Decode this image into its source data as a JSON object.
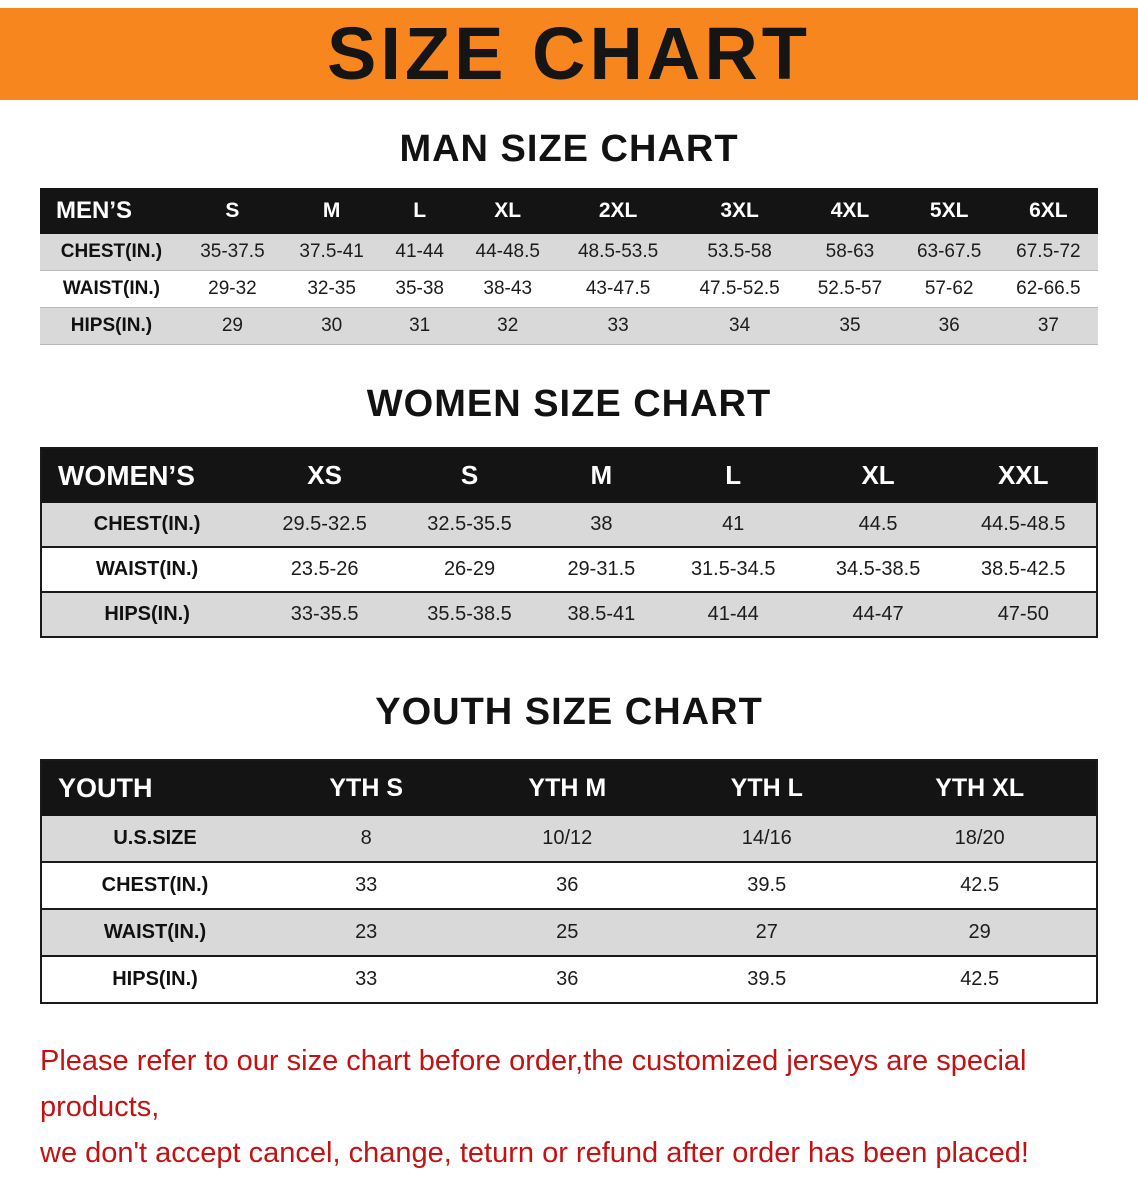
{
  "banner": {
    "title": "SIZE CHART"
  },
  "colors": {
    "banner_bg": "#f6861d",
    "header_bar": "#141414",
    "row_alt": "#d9d9d9",
    "disclaimer_red": "#c41212"
  },
  "sections": [
    {
      "heading": "MAN SIZE CHART",
      "table": {
        "header": [
          "MEN’S",
          "S",
          "M",
          "L",
          "XL",
          "2XL",
          "3XL",
          "4XL",
          "5XL",
          "6XL"
        ],
        "rows": [
          {
            "label": "CHEST(IN.)",
            "values": [
              "35-37.5",
              "37.5-41",
              "41-44",
              "44-48.5",
              "48.5-53.5",
              "53.5-58",
              "58-63",
              "63-67.5",
              "67.5-72"
            ]
          },
          {
            "label": "WAIST(IN.)",
            "values": [
              "29-32",
              "32-35",
              "35-38",
              "38-43",
              "43-47.5",
              "47.5-52.5",
              "52.5-57",
              "57-62",
              "62-66.5"
            ]
          },
          {
            "label": "HIPS(IN.)",
            "values": [
              "29",
              "30",
              "31",
              "32",
              "33",
              "34",
              "35",
              "36",
              "37"
            ]
          }
        ]
      }
    },
    {
      "heading": "WOMEN SIZE CHART",
      "table": {
        "header": [
          "WOMEN’S",
          "XS",
          "S",
          "M",
          "L",
          "XL",
          "XXL"
        ],
        "rows": [
          {
            "label": "CHEST(IN.)",
            "values": [
              "29.5-32.5",
              "32.5-35.5",
              "38",
              "41",
              "44.5",
              "44.5-48.5"
            ]
          },
          {
            "label": "WAIST(IN.)",
            "values": [
              "23.5-26",
              "26-29",
              "29-31.5",
              "31.5-34.5",
              "34.5-38.5",
              "38.5-42.5"
            ]
          },
          {
            "label": "HIPS(IN.)",
            "values": [
              "33-35.5",
              "35.5-38.5",
              "38.5-41",
              "41-44",
              "44-47",
              "47-50"
            ]
          }
        ]
      }
    },
    {
      "heading": "YOUTH SIZE CHART",
      "table": {
        "header": [
          "YOUTH",
          "YTH S",
          "YTH M",
          "YTH L",
          "YTH XL"
        ],
        "rows": [
          {
            "label": "U.S.SIZE",
            "values": [
              "8",
              "10/12",
              "14/16",
              "18/20"
            ]
          },
          {
            "label": "CHEST(IN.)",
            "values": [
              "33",
              "36",
              "39.5",
              "42.5"
            ]
          },
          {
            "label": "WAIST(IN.)",
            "values": [
              "23",
              "25",
              "27",
              "29"
            ]
          },
          {
            "label": "HIPS(IN.)",
            "values": [
              "33",
              "36",
              "39.5",
              "42.5"
            ]
          }
        ]
      }
    }
  ],
  "disclaimer": {
    "line1": "Please refer to our size chart before order,the customized jerseys are special products,",
    "line2": "we don't accept cancel, change, teturn or refund after order has been placed!"
  }
}
